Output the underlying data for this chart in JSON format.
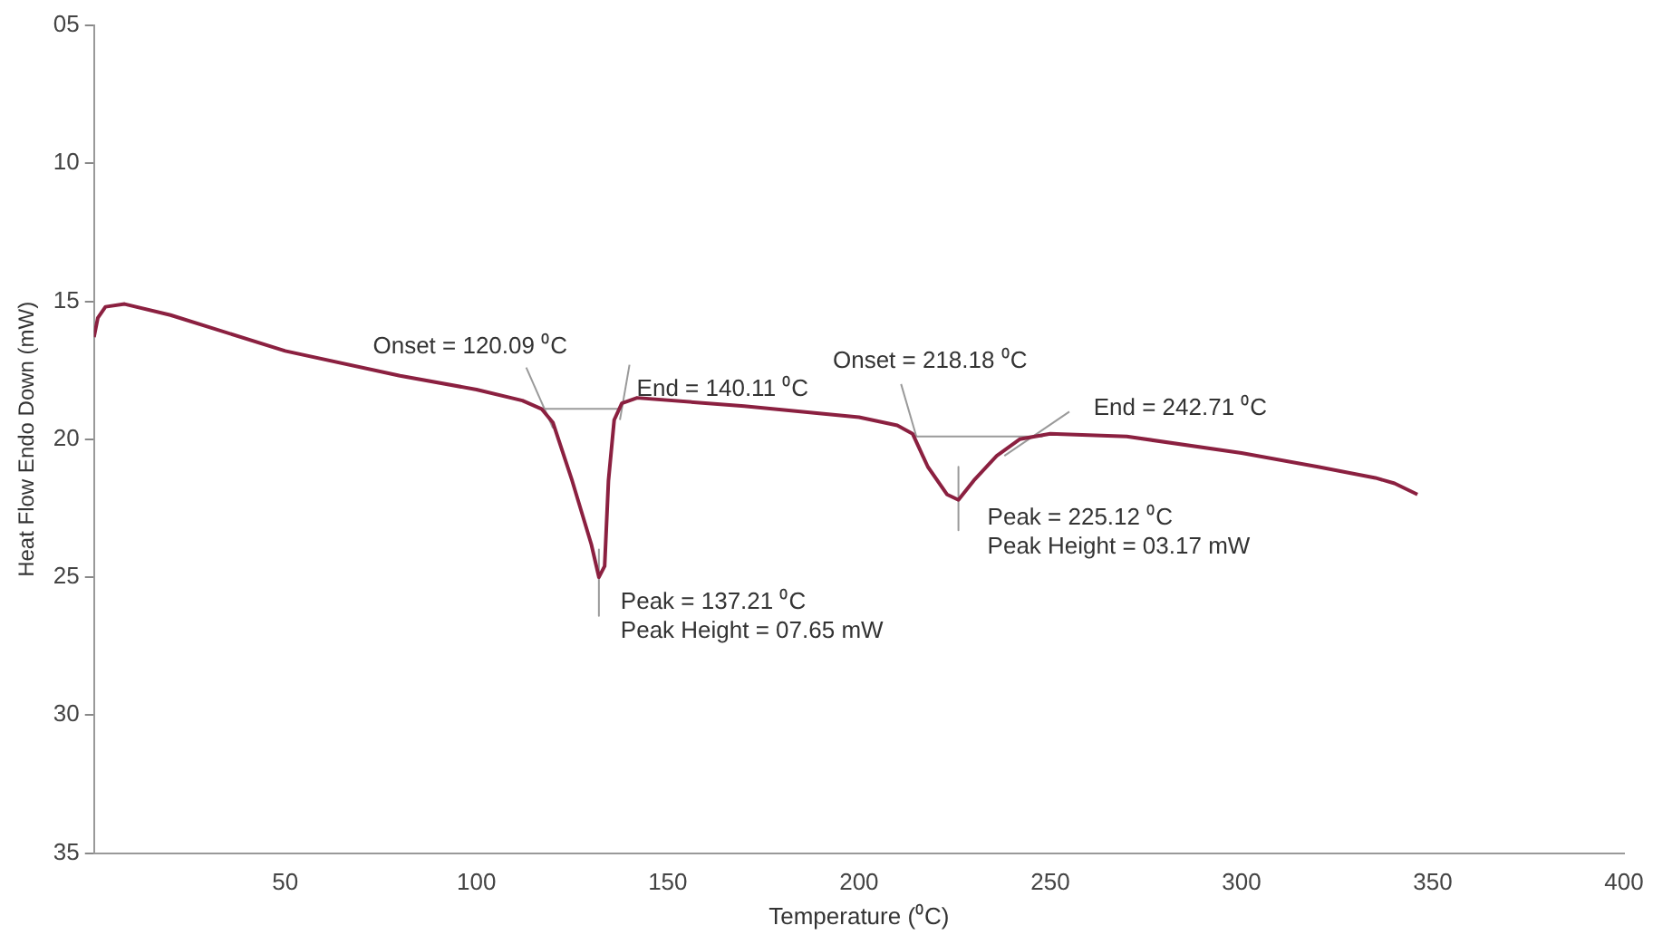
{
  "chart_data": {
    "type": "line",
    "xlabel": "Temperature (⁰C)",
    "ylabel": "Heat Flow Endo Down (mW)",
    "xlim": [
      0,
      400
    ],
    "xticks": [
      50,
      100,
      150,
      200,
      250,
      300,
      350,
      400
    ],
    "ylim": [
      35,
      5
    ],
    "yticks": [
      {
        "value": 5,
        "label": "05"
      },
      10,
      15,
      20,
      25,
      30,
      35
    ],
    "grid": false,
    "legend": false,
    "marker": "none",
    "line_style": "solid",
    "series": [
      {
        "color": "#8b2040",
        "x": [
          0,
          1,
          3,
          8,
          20,
          50,
          80,
          100,
          112,
          117,
          120,
          125,
          130,
          132,
          133.5,
          134.5,
          136,
          138,
          142,
          170,
          200,
          210,
          214,
          218,
          223,
          226,
          230,
          236,
          242,
          250,
          270,
          300,
          320,
          335,
          340,
          346
        ],
        "values": [
          16.3,
          15.6,
          15.2,
          15.1,
          15.5,
          16.8,
          17.7,
          18.2,
          18.6,
          18.9,
          19.4,
          21.5,
          23.8,
          25.0,
          24.6,
          21.5,
          19.3,
          18.7,
          18.5,
          18.8,
          19.2,
          19.5,
          19.8,
          21.0,
          22.0,
          22.2,
          21.5,
          20.6,
          20.0,
          19.8,
          19.9,
          20.5,
          21.0,
          21.4,
          21.6,
          22.0
        ]
      },
      {
        "type": "line",
        "color": "#9a9a9a",
        "x": [
          117,
          138
        ],
        "values": [
          18.9,
          18.9
        ]
      },
      {
        "type": "line",
        "color": "#9a9a9a",
        "x": [
          113,
          120
        ],
        "values": [
          17.4,
          19.6
        ]
      },
      {
        "type": "line",
        "color": "#9a9a9a",
        "x": [
          137.5,
          140
        ],
        "values": [
          19.3,
          17.3
        ]
      },
      {
        "type": "line",
        "color": "#9a9a9a",
        "x": [
          132,
          132
        ],
        "values": [
          24.0,
          26.4
        ]
      },
      {
        "type": "line",
        "color": "#9a9a9a",
        "x": [
          214,
          248
        ],
        "values": [
          19.9,
          19.9
        ]
      },
      {
        "type": "line",
        "color": "#9a9a9a",
        "x": [
          211,
          215
        ],
        "values": [
          18.0,
          19.9
        ]
      },
      {
        "type": "line",
        "color": "#9a9a9a",
        "x": [
          238,
          255
        ],
        "values": [
          20.6,
          19.0
        ]
      },
      {
        "type": "line",
        "color": "#9a9a9a",
        "x": [
          226,
          226
        ],
        "values": [
          21.0,
          23.3
        ]
      }
    ],
    "annotations": [
      {
        "text": "Onset = 120.09 ⁰C",
        "x": 119,
        "y": 18.9
      },
      {
        "text": "End = 140.11 ⁰C",
        "x": 140,
        "y": 18.6
      },
      {
        "text": "Peak = 137.21 ⁰C\nPeak Height = 07.65 mW",
        "x": 132,
        "y": 25.0
      },
      {
        "text": "Onset = 218.18 ⁰C",
        "x": 214,
        "y": 19.8
      },
      {
        "text": "End = 242.71 ⁰C",
        "x": 249,
        "y": 19.8
      },
      {
        "text": "Peak = 225.12 ⁰C\nPeak Height = 03.17 mW",
        "x": 226,
        "y": 22.2
      }
    ]
  }
}
